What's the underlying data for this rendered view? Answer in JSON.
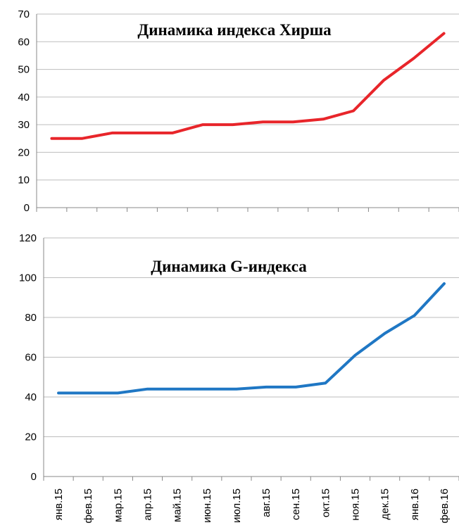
{
  "chart_data": [
    {
      "type": "line",
      "title": "Динамика индекса Хирша",
      "categories": [
        null,
        null,
        null,
        null,
        null,
        null,
        null,
        null,
        null,
        null,
        null,
        null,
        null,
        null
      ],
      "series": [
        {
          "color": "#e8252a",
          "values": [
            25,
            25,
            27,
            27,
            27,
            30,
            30,
            31,
            31,
            32,
            35,
            46,
            54,
            63
          ]
        }
      ],
      "ylim": [
        0,
        70
      ],
      "yticks": [
        0,
        10,
        20,
        30,
        40,
        50,
        60,
        70
      ],
      "grid": true
    },
    {
      "type": "line",
      "title": "Динамика G-индекса",
      "categories": [
        "янв.15",
        "фев.15",
        "мар.15",
        "апр.15",
        "май.15",
        "июн.15",
        "июл.15",
        "авг.15",
        "сен.15",
        "окт.15",
        "ноя.15",
        "дек.15",
        "янв.16",
        "фев.16"
      ],
      "series": [
        {
          "color": "#1f77c4",
          "values": [
            42,
            42,
            42,
            44,
            44,
            44,
            44,
            45,
            45,
            47,
            61,
            72,
            81,
            97
          ]
        }
      ],
      "ylim": [
        0,
        120
      ],
      "yticks": [
        0,
        20,
        40,
        60,
        80,
        100,
        120
      ],
      "grid": true
    }
  ]
}
